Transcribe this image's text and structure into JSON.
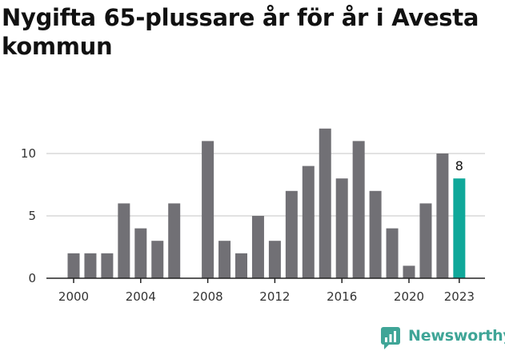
{
  "chart_data": {
    "type": "bar",
    "title": "Nygifta 65-plussare år för år i Avesta kommun",
    "xlabel": "",
    "ylabel": "",
    "x": [
      2000,
      2001,
      2002,
      2003,
      2004,
      2005,
      2006,
      2007,
      2008,
      2009,
      2010,
      2011,
      2012,
      2013,
      2014,
      2015,
      2016,
      2017,
      2018,
      2019,
      2020,
      2021,
      2022,
      2023
    ],
    "values": [
      2,
      2,
      2,
      6,
      4,
      3,
      6,
      0,
      11,
      3,
      2,
      5,
      3,
      7,
      9,
      12,
      8,
      11,
      7,
      4,
      1,
      6,
      10,
      8
    ],
    "x_ticks": [
      "2000",
      "2004",
      "2008",
      "2012",
      "2016",
      "2020",
      "2023"
    ],
    "y_ticks": [
      "0",
      "5",
      "10"
    ],
    "ylim": [
      0,
      12.5
    ],
    "highlight_label": "8",
    "colors": {
      "bar": "#717075",
      "highlight": "#10a89a",
      "grid": "#d9d9d9",
      "axis": "#222222"
    }
  },
  "brand": {
    "name": "Newsworthy",
    "icon": "newsworthy-logo-icon"
  }
}
